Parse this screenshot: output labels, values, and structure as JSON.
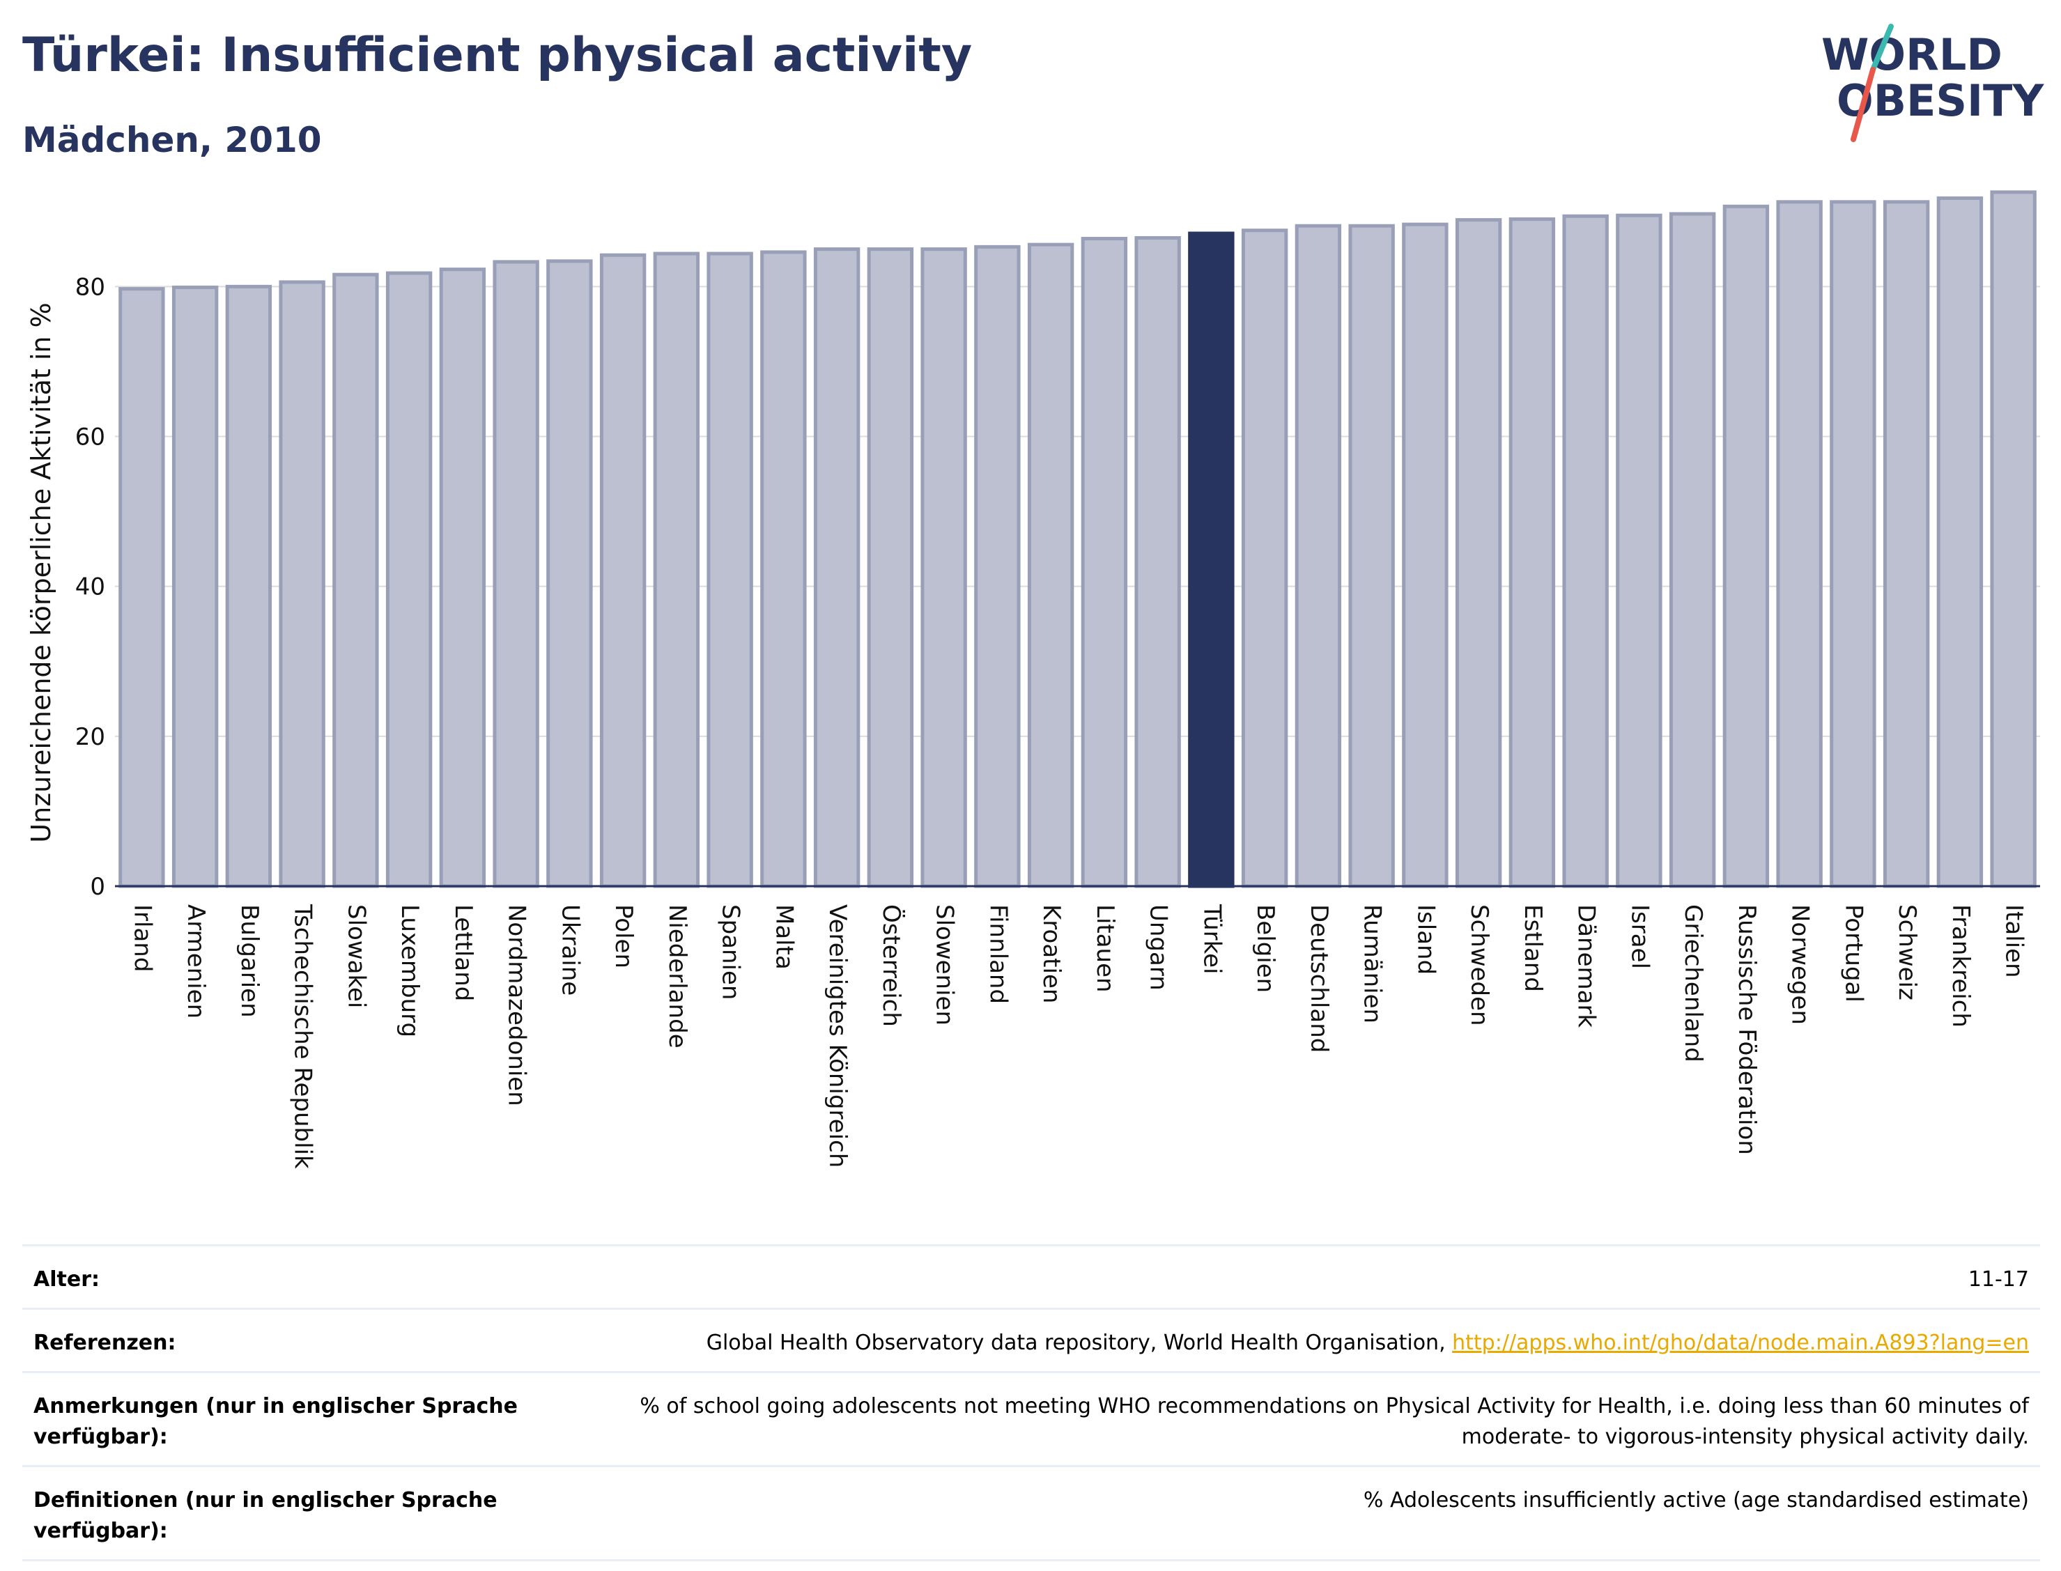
{
  "header": {
    "title": "Türkei: Insufficient physical activity",
    "subtitle": "Mädchen, 2010"
  },
  "logo": {
    "line1": "WORLD",
    "line2": "OBESITY",
    "colors": {
      "text": "#283460",
      "slash_teal": "#3bb8b0",
      "slash_red": "#e8584a"
    }
  },
  "chart_data": {
    "type": "bar",
    "title": "",
    "xlabel": "",
    "ylabel": "Unzureichende körperliche Aktivität in %",
    "ylim": [
      0,
      95
    ],
    "yticks": [
      0,
      20,
      40,
      60,
      80
    ],
    "grid": true,
    "highlight": "Türkei",
    "colors": {
      "bar": "#bcc0d0",
      "bar_edge": "#9a9fb8",
      "highlight": "#283460",
      "grid": "#dcdcdc",
      "axis": "#283460"
    },
    "categories": [
      "Irland",
      "Armenien",
      "Bulgarien",
      "Tschechische Republik",
      "Slowakei",
      "Luxemburg",
      "Lettland",
      "Nordmazedonien",
      "Ukraine",
      "Polen",
      "Niederlande",
      "Spanien",
      "Malta",
      "Vereinigtes Königreich",
      "Österreich",
      "Slowenien",
      "Finnland",
      "Kroatien",
      "Litauen",
      "Ungarn",
      "Türkei",
      "Belgien",
      "Deutschland",
      "Rumänien",
      "Island",
      "Schweden",
      "Estland",
      "Dänemark",
      "Israel",
      "Griechenland",
      "Russische Föderation",
      "Norwegen",
      "Portugal",
      "Schweiz",
      "Frankreich",
      "Italien"
    ],
    "values": [
      79.7,
      79.9,
      80.0,
      80.6,
      81.6,
      81.8,
      82.3,
      83.3,
      83.4,
      84.2,
      84.4,
      84.4,
      84.6,
      85.0,
      85.0,
      85.0,
      85.3,
      85.6,
      86.4,
      86.5,
      87.1,
      87.5,
      88.1,
      88.1,
      88.3,
      88.9,
      89.0,
      89.4,
      89.5,
      89.7,
      90.7,
      91.3,
      91.3,
      91.3,
      91.8,
      92.6
    ]
  },
  "info": {
    "rows": [
      {
        "key": "Alter:",
        "value": "11-17"
      },
      {
        "key": "Referenzen:",
        "value": "Global Health Observatory data repository, World Health Organisation, ",
        "link": "http://apps.who.int/gho/data/node.main.A893?lang=en"
      },
      {
        "key": "Anmerkungen (nur in englischer Sprache verfügbar):",
        "value": "% of school going adolescents not meeting WHO recommendations on Physical Activity for Health, i.e. doing less than 60 minutes of moderate- to vigorous-intensity physical activity daily."
      },
      {
        "key": "Definitionen (nur in englischer Sprache verfügbar):",
        "value": "% Adolescents insufficiently active (age standardised estimate)"
      }
    ]
  }
}
